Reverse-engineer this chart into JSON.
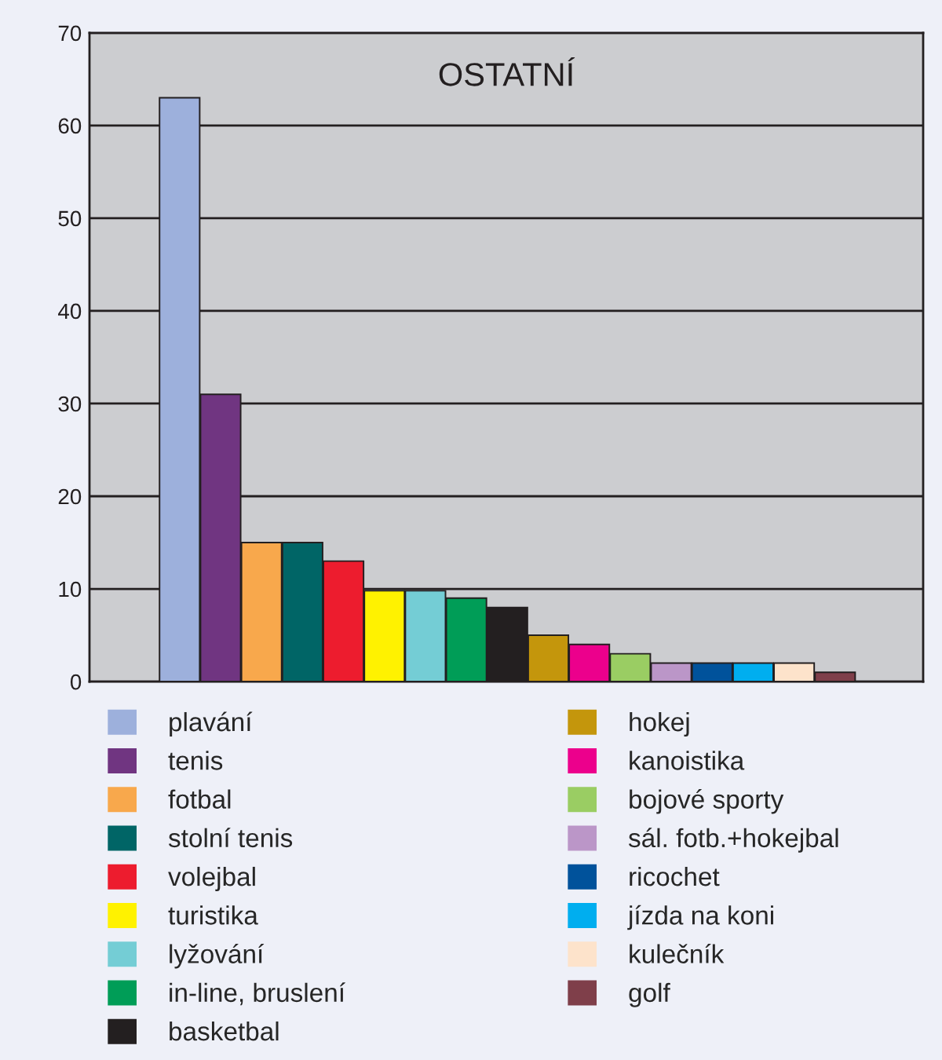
{
  "chart_data": {
    "type": "bar",
    "title": "OSTATNÍ",
    "stacked": true,
    "categories": [
      null,
      null,
      null,
      null,
      null,
      null,
      null,
      null,
      null,
      null,
      null,
      null,
      null,
      null,
      null,
      null,
      null
    ],
    "series": [
      {
        "name": "plavání",
        "color": "#9db0dc",
        "values": [
          63,
          null,
          null,
          null,
          null,
          null,
          null,
          null,
          null,
          null,
          null,
          null,
          null,
          null,
          null,
          null,
          null
        ]
      },
      {
        "name": "tenis",
        "color": "#703581",
        "values": [
          null,
          31,
          null,
          null,
          null,
          null,
          null,
          null,
          null,
          null,
          null,
          null,
          null,
          null,
          null,
          null,
          null
        ]
      },
      {
        "name": "fotbal",
        "color": "#f8a84c",
        "values": [
          null,
          null,
          15,
          null,
          null,
          null,
          null,
          null,
          null,
          null,
          null,
          null,
          null,
          null,
          null,
          null,
          null
        ]
      },
      {
        "name": "stolní tenis",
        "color": "#006566",
        "values": [
          null,
          null,
          null,
          15,
          null,
          null,
          null,
          null,
          null,
          null,
          null,
          null,
          null,
          null,
          null,
          null,
          null
        ]
      },
      {
        "name": "volejbal",
        "color": "#ed1c2e",
        "values": [
          null,
          null,
          null,
          null,
          13,
          null,
          null,
          null,
          null,
          null,
          null,
          null,
          null,
          null,
          null,
          null,
          null
        ]
      },
      {
        "name": "turistika",
        "color": "#fff200",
        "values": [
          null,
          null,
          null,
          null,
          null,
          9.8,
          null,
          null,
          null,
          null,
          null,
          null,
          null,
          null,
          null,
          null,
          null
        ]
      },
      {
        "name": "lyžování",
        "color": "#74cdd5",
        "values": [
          null,
          null,
          null,
          null,
          null,
          null,
          9.8,
          null,
          null,
          null,
          null,
          null,
          null,
          null,
          null,
          null,
          null
        ]
      },
      {
        "name": "in-line, bruslení",
        "color": "#009d57",
        "values": [
          null,
          null,
          null,
          null,
          null,
          null,
          null,
          9,
          null,
          null,
          null,
          null,
          null,
          null,
          null,
          null,
          null
        ]
      },
      {
        "name": "basketbal",
        "color": "#231f20",
        "values": [
          null,
          null,
          null,
          null,
          null,
          null,
          null,
          null,
          8,
          null,
          null,
          null,
          null,
          null,
          null,
          null,
          null
        ]
      },
      {
        "name": "hokej",
        "color": "#c4960c",
        "values": [
          null,
          null,
          null,
          null,
          null,
          null,
          null,
          null,
          null,
          5,
          null,
          null,
          null,
          null,
          null,
          null,
          null
        ]
      },
      {
        "name": "kanoistika",
        "color": "#ec008c",
        "values": [
          null,
          null,
          null,
          null,
          null,
          null,
          null,
          null,
          null,
          null,
          4,
          null,
          null,
          null,
          null,
          null,
          null
        ]
      },
      {
        "name": "bojové sporty",
        "color": "#9acd63",
        "values": [
          null,
          null,
          null,
          null,
          null,
          null,
          null,
          null,
          null,
          null,
          null,
          3,
          null,
          null,
          null,
          null,
          null
        ]
      },
      {
        "name": "sál. fotb.+hokejbal",
        "color": "#bb96c8",
        "values": [
          null,
          null,
          null,
          null,
          null,
          null,
          null,
          null,
          null,
          null,
          null,
          null,
          2,
          null,
          null,
          null,
          null
        ]
      },
      {
        "name": "ricochet",
        "color": "#00529b",
        "values": [
          null,
          null,
          null,
          null,
          null,
          null,
          null,
          null,
          null,
          null,
          null,
          null,
          null,
          2,
          null,
          null,
          null
        ]
      },
      {
        "name": "jízda na koni",
        "color": "#00aeef",
        "values": [
          null,
          null,
          null,
          null,
          null,
          null,
          null,
          null,
          null,
          null,
          null,
          null,
          null,
          null,
          2,
          null,
          null
        ]
      },
      {
        "name": "kulečník",
        "color": "#fde3cb",
        "values": [
          null,
          null,
          null,
          null,
          null,
          null,
          null,
          null,
          null,
          null,
          null,
          null,
          null,
          null,
          null,
          2,
          null
        ]
      },
      {
        "name": "golf",
        "color": "#7f3f4a",
        "values": [
          null,
          null,
          null,
          null,
          null,
          null,
          null,
          null,
          null,
          null,
          null,
          null,
          null,
          null,
          null,
          null,
          1
        ]
      }
    ],
    "ylim": [
      0,
      70
    ],
    "yticks": [
      0,
      10,
      20,
      30,
      40,
      50,
      60,
      70
    ],
    "grid": "y",
    "legend": "bottom",
    "tick_labels": "y"
  }
}
